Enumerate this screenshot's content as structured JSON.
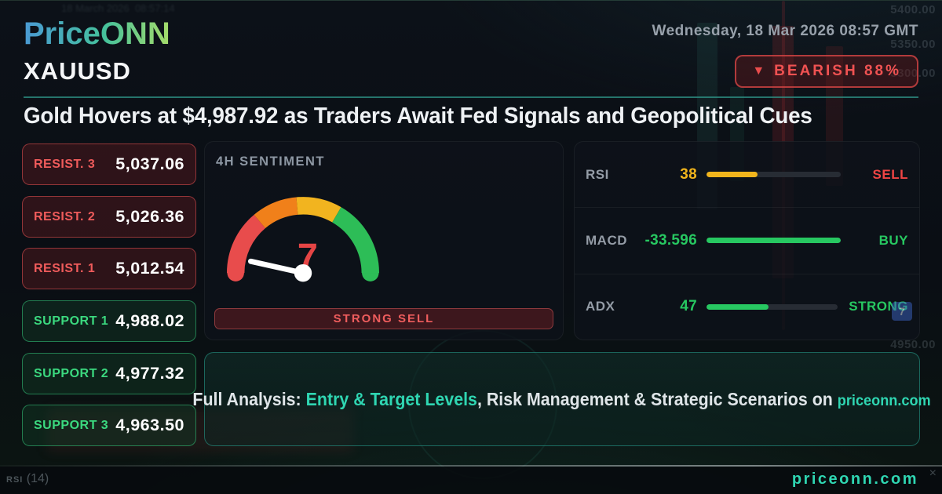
{
  "header": {
    "logo_text": "PriceONN",
    "datetime": "Wednesday, 18 Mar 2026 08:57 GMT",
    "symbol": "XAUUSD",
    "signal_badge": {
      "direction_icon": "▼",
      "label": "BEARISH 88%"
    }
  },
  "headline": "Gold Hovers at $4,987.92 as Traders Await Fed Signals and Geopolitical Cues",
  "levels": {
    "resistances": [
      {
        "label": "RESIST. 3",
        "value": "5,037.06"
      },
      {
        "label": "RESIST. 2",
        "value": "5,026.36"
      },
      {
        "label": "RESIST. 1",
        "value": "5,012.54"
      }
    ],
    "supports": [
      {
        "label": "SUPPORT 1",
        "value": "4,988.02"
      },
      {
        "label": "SUPPORT 2",
        "value": "4,977.32"
      },
      {
        "label": "SUPPORT 3",
        "value": "4,963.50"
      }
    ]
  },
  "sentiment": {
    "title": "4H SENTIMENT",
    "value": 7,
    "max": 100,
    "verdict": "STRONG SELL",
    "value_color": "#e64545",
    "arc_colors": {
      "red": "#e84c4c",
      "orange": "#f0801a",
      "amber": "#f2b41f",
      "green": "#2dbd57"
    }
  },
  "indicators": [
    {
      "name": "RSI",
      "value": "38",
      "bar_pct": 38,
      "bar_color": "#f2b51c",
      "value_color": "#f2b51c",
      "signal": "SELL",
      "signal_color": "#ef4444"
    },
    {
      "name": "MACD",
      "value": "-33.596",
      "bar_pct": 100,
      "bar_color": "#27c861",
      "value_color": "#27c861",
      "signal": "BUY",
      "signal_color": "#27c861"
    },
    {
      "name": "ADX",
      "value": "47",
      "bar_pct": 47,
      "bar_color": "#27c861",
      "value_color": "#27c861",
      "signal": "STRONG",
      "signal_color": "#27c861"
    }
  ],
  "cta": {
    "prefix": "Full Analysis: ",
    "link1": "Entry & Target Levels",
    "middle": ", Risk Management & Strategic Scenarios on ",
    "link2": "priceonn.com"
  },
  "footer": {
    "watermark_left_1": "RSI",
    "watermark_left_2": "(14)",
    "website": "priceonn.com",
    "close_icon": "×"
  },
  "background": {
    "faint_datetime": "18 March 2026  08:57:14",
    "axis_labels": [
      {
        "text": "5400.00"
      },
      {
        "text": "5350.00"
      },
      {
        "text": "5300.00"
      },
      {
        "text": "4950.00"
      }
    ],
    "price_tag": "7"
  },
  "colors": {
    "accent_teal": "#2fd6b2",
    "bearish_red": "#f05252",
    "bullish_green": "#27c861",
    "gold": "#f2b51c"
  }
}
